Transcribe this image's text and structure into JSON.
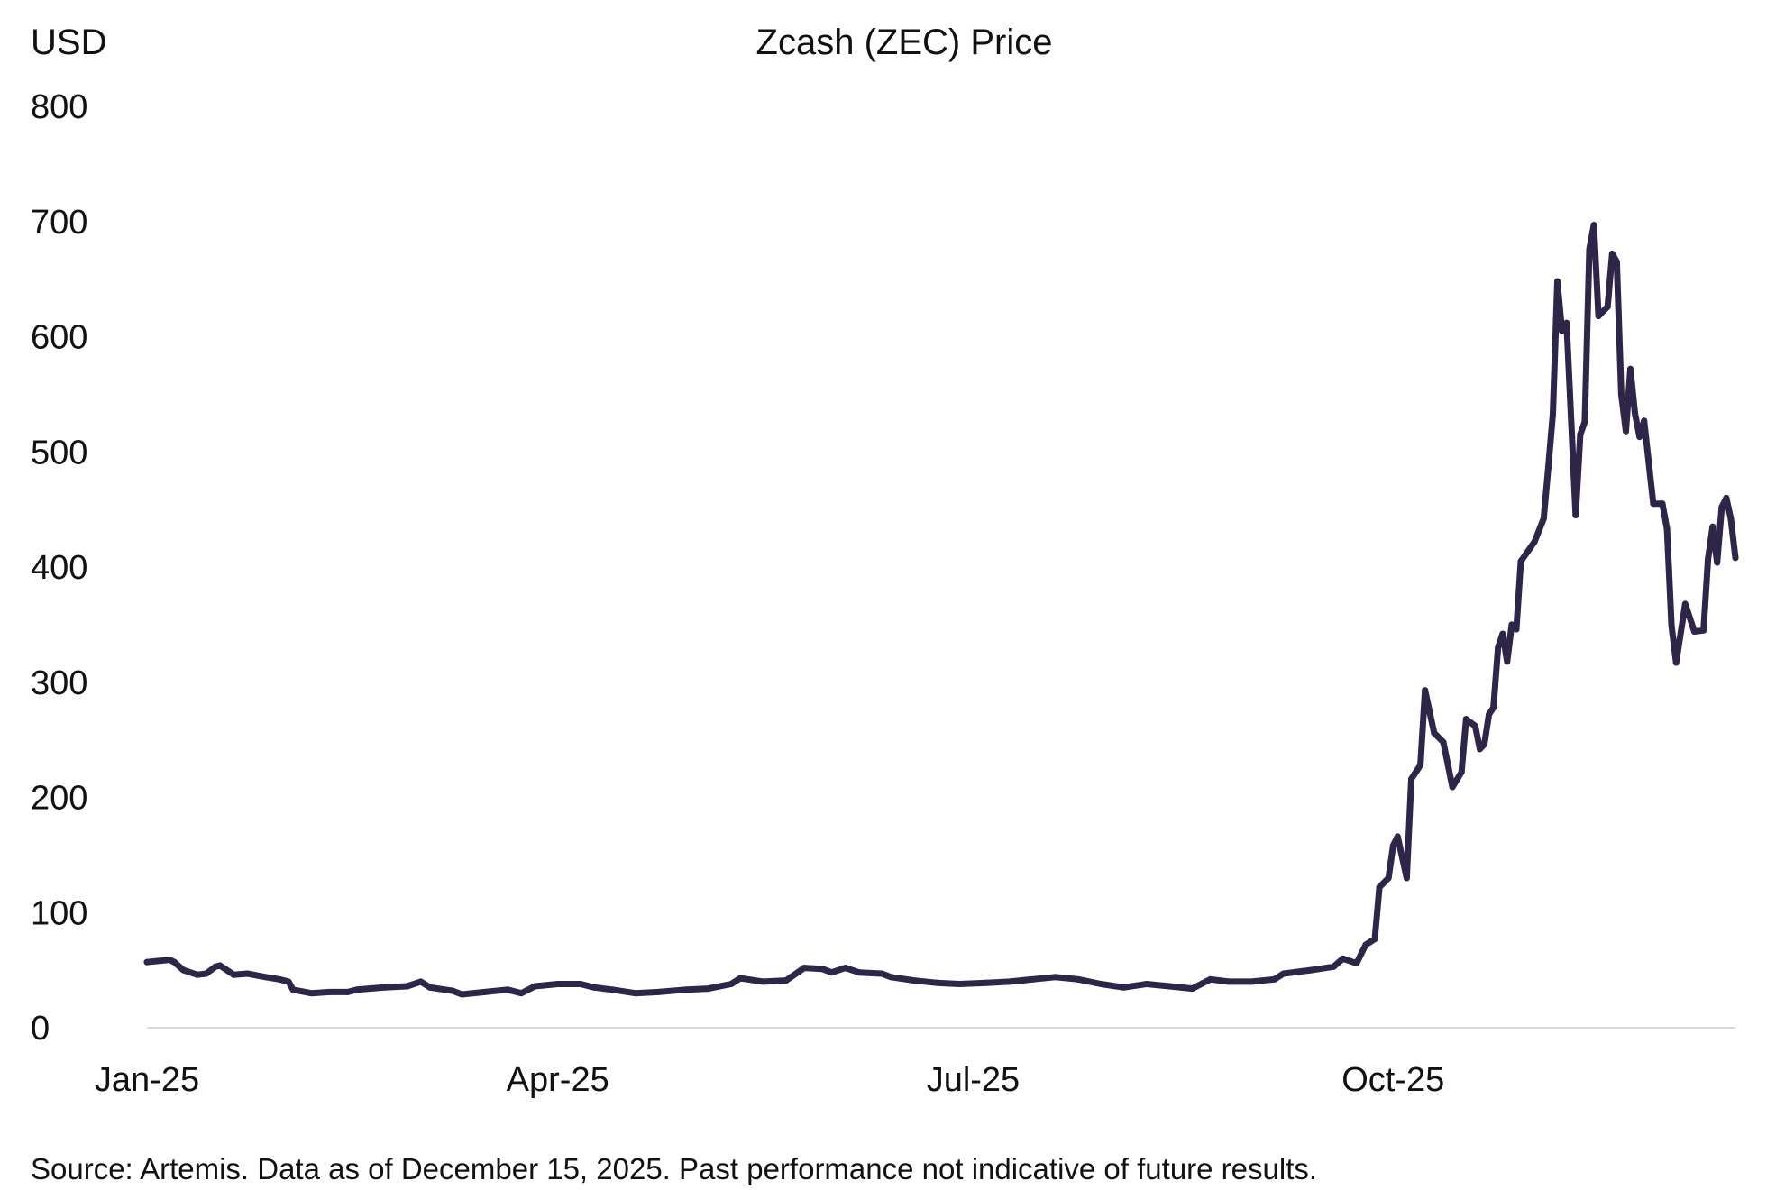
{
  "chart_data": {
    "type": "line",
    "title": "Zcash (ZEC) Price",
    "ylabel": "USD",
    "xlabel": "",
    "ylim": [
      0,
      800
    ],
    "yticks": [
      "0",
      "100",
      "200",
      "300",
      "400",
      "500",
      "600",
      "700",
      "800"
    ],
    "xlim": [
      "2025-01-01",
      "2025-12-15"
    ],
    "xticks": [
      {
        "label": "Jan-25",
        "date": "2025-01-01"
      },
      {
        "label": "Apr-25",
        "date": "2025-04-01"
      },
      {
        "label": "Jul-25",
        "date": "2025-07-01"
      },
      {
        "label": "Oct-25",
        "date": "2025-10-01"
      }
    ],
    "grid": false,
    "line_color": "#2e2548",
    "axis_color": "#d9d9d9",
    "series": [
      {
        "x": [
          "2025-01-01",
          "2025-01-06",
          "2025-01-07",
          "2025-01-09",
          "2025-01-12",
          "2025-01-14",
          "2025-01-16",
          "2025-01-17",
          "2025-01-20",
          "2025-01-23",
          "2025-01-27",
          "2025-01-30",
          "2025-02-01",
          "2025-02-02",
          "2025-02-06",
          "2025-02-10",
          "2025-02-14",
          "2025-02-16",
          "2025-02-22",
          "2025-02-27",
          "2025-03-02",
          "2025-03-04",
          "2025-03-09",
          "2025-03-11",
          "2025-03-16",
          "2025-03-21",
          "2025-03-24",
          "2025-03-27",
          "2025-04-01",
          "2025-04-06",
          "2025-04-09",
          "2025-04-13",
          "2025-04-18",
          "2025-04-23",
          "2025-04-29",
          "2025-05-04",
          "2025-05-09",
          "2025-05-11",
          "2025-05-16",
          "2025-05-21",
          "2025-05-25",
          "2025-05-29",
          "2025-05-31",
          "2025-06-03",
          "2025-06-06",
          "2025-06-11",
          "2025-06-13",
          "2025-06-18",
          "2025-06-23",
          "2025-06-28",
          "2025-07-04",
          "2025-07-09",
          "2025-07-14",
          "2025-07-19",
          "2025-07-24",
          "2025-07-29",
          "2025-08-03",
          "2025-08-08",
          "2025-08-13",
          "2025-08-18",
          "2025-08-22",
          "2025-08-26",
          "2025-08-31",
          "2025-09-05",
          "2025-09-07",
          "2025-09-13",
          "2025-09-18",
          "2025-09-20",
          "2025-09-23",
          "2025-09-25",
          "2025-09-27",
          "2025-09-28",
          "2025-09-30",
          "2025-10-01",
          "2025-10-02",
          "2025-10-04",
          "2025-10-05",
          "2025-10-07",
          "2025-10-08",
          "2025-10-10",
          "2025-10-12",
          "2025-10-14",
          "2025-10-16",
          "2025-10-17",
          "2025-10-19",
          "2025-10-20",
          "2025-10-21",
          "2025-10-22",
          "2025-10-23",
          "2025-10-24",
          "2025-10-25",
          "2025-10-26",
          "2025-10-27",
          "2025-10-28",
          "2025-10-29",
          "2025-11-01",
          "2025-11-03",
          "2025-11-04",
          "2025-11-05",
          "2025-11-06",
          "2025-11-07",
          "2025-11-08",
          "2025-11-10",
          "2025-11-11",
          "2025-11-12",
          "2025-11-13",
          "2025-11-14",
          "2025-11-15",
          "2025-11-17",
          "2025-11-18",
          "2025-11-19",
          "2025-11-20",
          "2025-11-21",
          "2025-11-22",
          "2025-11-23",
          "2025-11-24",
          "2025-11-25",
          "2025-11-27",
          "2025-11-29",
          "2025-11-30",
          "2025-12-01",
          "2025-12-02",
          "2025-12-04",
          "2025-12-06",
          "2025-12-08",
          "2025-12-09",
          "2025-12-10",
          "2025-12-11",
          "2025-12-12",
          "2025-12-13",
          "2025-12-14",
          "2025-12-15"
        ],
        "y": [
          57,
          59,
          57,
          50,
          46,
          47,
          53,
          54,
          46,
          47,
          44,
          42,
          40,
          33,
          30,
          31,
          31,
          33,
          35,
          36,
          40,
          35,
          32,
          29,
          31,
          33,
          30,
          36,
          38,
          38,
          35,
          33,
          30,
          31,
          33,
          34,
          38,
          43,
          40,
          41,
          52,
          51,
          48,
          52,
          48,
          47,
          44,
          41,
          39,
          38,
          39,
          40,
          42,
          44,
          42,
          38,
          35,
          38,
          36,
          34,
          42,
          40,
          40,
          42,
          47,
          50,
          53,
          60,
          56,
          72,
          77,
          122,
          130,
          158,
          166,
          130,
          216,
          228,
          293,
          256,
          248,
          209,
          222,
          268,
          262,
          242,
          246,
          272,
          278,
          330,
          342,
          318,
          350,
          346,
          405,
          422,
          442,
          486,
          533,
          648,
          605,
          612,
          445,
          515,
          526,
          676,
          697,
          618,
          626,
          672,
          665,
          550,
          518,
          572,
          533,
          513,
          527,
          455,
          455,
          433,
          349,
          317,
          368,
          344,
          345,
          407,
          435,
          404,
          452,
          460,
          442,
          408
        ]
      }
    ],
    "source": "Source: Artemis. Data as of December 15, 2025. Past performance not indicative of future results."
  }
}
